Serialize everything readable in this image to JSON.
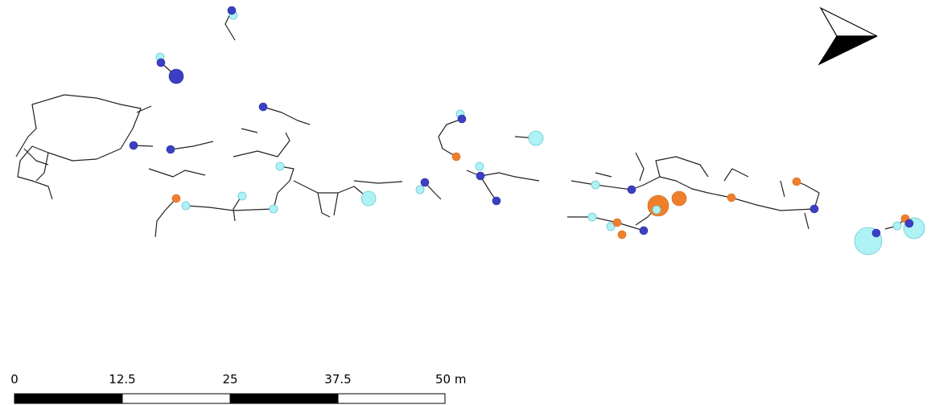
{
  "scale_bar": {
    "labels": [
      "0",
      "12.5",
      "25",
      "37.5",
      "50 m"
    ]
  }
}
